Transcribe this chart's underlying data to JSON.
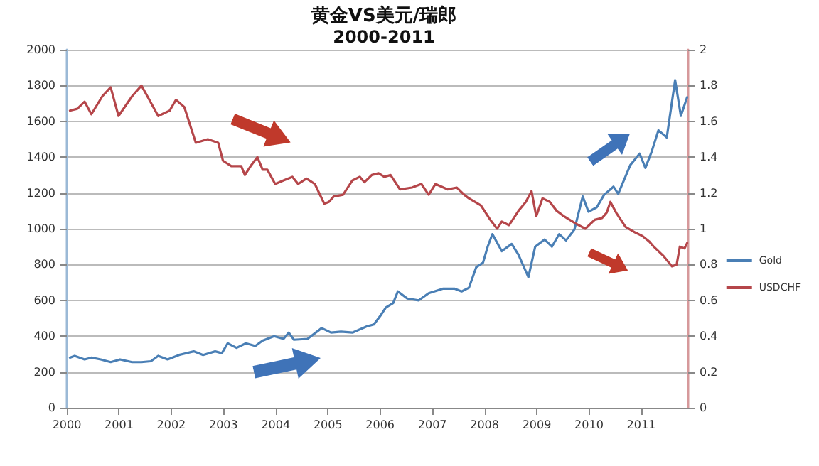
{
  "chart_data": {
    "type": "line",
    "title": "黄金VS美元/瑞郎",
    "subtitle": "2000-2011",
    "xlim": [
      2000,
      2011.9
    ],
    "xticks": [
      2000,
      2001,
      2002,
      2003,
      2004,
      2005,
      2006,
      2007,
      2008,
      2009,
      2010,
      2011
    ],
    "ylim": [
      0,
      2000
    ],
    "yticks": [
      0,
      200,
      400,
      600,
      800,
      1000,
      1200,
      1400,
      1600,
      1800,
      2000
    ],
    "y2lim": [
      0,
      2
    ],
    "y2ticks": [
      0,
      0.2,
      0.4,
      0.6,
      0.8,
      1,
      1.2,
      1.4,
      1.6,
      1.8,
      2
    ],
    "grid": "y",
    "legend": "right",
    "marker": "none",
    "line_style": "solid",
    "series": [
      {
        "name": "Gold",
        "color": "#4a7fb5",
        "x": [
          2000.06,
          2000.15,
          2000.34,
          2000.47,
          2000.65,
          2000.84,
          2001.02,
          2001.25,
          2001.43,
          2001.61,
          2001.75,
          2001.93,
          2002.15,
          2002.43,
          2002.61,
          2002.84,
          2002.97,
          2003.08,
          2003.25,
          2003.43,
          2003.61,
          2003.75,
          2003.97,
          2004.15,
          2004.25,
          2004.35,
          2004.61,
          2004.88,
          2005.06,
          2005.25,
          2005.47,
          2005.75,
          2005.88,
          2006.02,
          2006.11,
          2006.25,
          2006.34,
          2006.52,
          2006.74,
          2006.93,
          2007.2,
          2007.43,
          2007.56,
          2007.7,
          2007.84,
          2007.97,
          2008.06,
          2008.15,
          2008.33,
          2008.52,
          2008.65,
          2008.84,
          2008.97,
          2009.15,
          2009.29,
          2009.43,
          2009.56,
          2009.72,
          2009.88,
          2009.99,
          2010.15,
          2010.29,
          2010.47,
          2010.56,
          2010.79,
          2010.97,
          2011.08,
          2011.2,
          2011.33,
          2011.49,
          2011.65,
          2011.76,
          2011.88
        ],
        "values": [
          280,
          290,
          270,
          280,
          270,
          255,
          270,
          255,
          255,
          260,
          290,
          270,
          295,
          315,
          295,
          315,
          305,
          360,
          335,
          360,
          345,
          375,
          400,
          385,
          420,
          380,
          385,
          445,
          420,
          425,
          420,
          455,
          465,
          520,
          560,
          585,
          650,
          610,
          600,
          640,
          665,
          665,
          650,
          670,
          785,
          810,
          900,
          970,
          875,
          915,
          855,
          730,
          900,
          940,
          900,
          970,
          935,
          995,
          1180,
          1095,
          1120,
          1190,
          1235,
          1195,
          1355,
          1420,
          1340,
          1430,
          1550,
          1510,
          1830,
          1630,
          1735
        ]
      },
      {
        "name": "USDCHF",
        "color": "#b5464a",
        "axis": "y2",
        "x": [
          2000.06,
          2000.2,
          2000.34,
          2000.47,
          2000.68,
          2000.84,
          2000.99,
          2001.25,
          2001.43,
          2001.75,
          2001.97,
          2002.09,
          2002.25,
          2002.47,
          2002.7,
          2002.9,
          2002.99,
          2003.15,
          2003.34,
          2003.41,
          2003.52,
          2003.65,
          2003.75,
          2003.84,
          2003.99,
          2004.15,
          2004.32,
          2004.43,
          2004.59,
          2004.75,
          2004.93,
          2005.02,
          2005.11,
          2005.29,
          2005.47,
          2005.61,
          2005.7,
          2005.84,
          2005.97,
          2006.08,
          2006.2,
          2006.38,
          2006.61,
          2006.79,
          2006.93,
          2007.06,
          2007.29,
          2007.47,
          2007.61,
          2007.7,
          2007.93,
          2008.11,
          2008.24,
          2008.33,
          2008.47,
          2008.65,
          2008.79,
          2008.9,
          2008.99,
          2009.11,
          2009.25,
          2009.38,
          2009.52,
          2009.74,
          2009.93,
          2010.11,
          2010.25,
          2010.34,
          2010.41,
          2010.52,
          2010.7,
          2010.88,
          2011.02,
          2011.15,
          2011.24,
          2011.42,
          2011.59,
          2011.68,
          2011.74,
          2011.83,
          2011.88
        ],
        "values": [
          1.66,
          1.67,
          1.71,
          1.64,
          1.74,
          1.79,
          1.63,
          1.74,
          1.8,
          1.63,
          1.66,
          1.72,
          1.68,
          1.48,
          1.5,
          1.48,
          1.38,
          1.35,
          1.35,
          1.3,
          1.35,
          1.4,
          1.33,
          1.33,
          1.25,
          1.27,
          1.29,
          1.25,
          1.28,
          1.25,
          1.14,
          1.15,
          1.18,
          1.19,
          1.27,
          1.29,
          1.26,
          1.3,
          1.31,
          1.29,
          1.3,
          1.22,
          1.23,
          1.25,
          1.19,
          1.25,
          1.22,
          1.23,
          1.19,
          1.17,
          1.13,
          1.05,
          1.0,
          1.04,
          1.02,
          1.1,
          1.15,
          1.21,
          1.07,
          1.17,
          1.15,
          1.1,
          1.07,
          1.03,
          1.0,
          1.05,
          1.06,
          1.09,
          1.15,
          1.09,
          1.01,
          0.98,
          0.96,
          0.93,
          0.9,
          0.85,
          0.79,
          0.8,
          0.9,
          0.89,
          0.92
        ]
      }
    ]
  }
}
